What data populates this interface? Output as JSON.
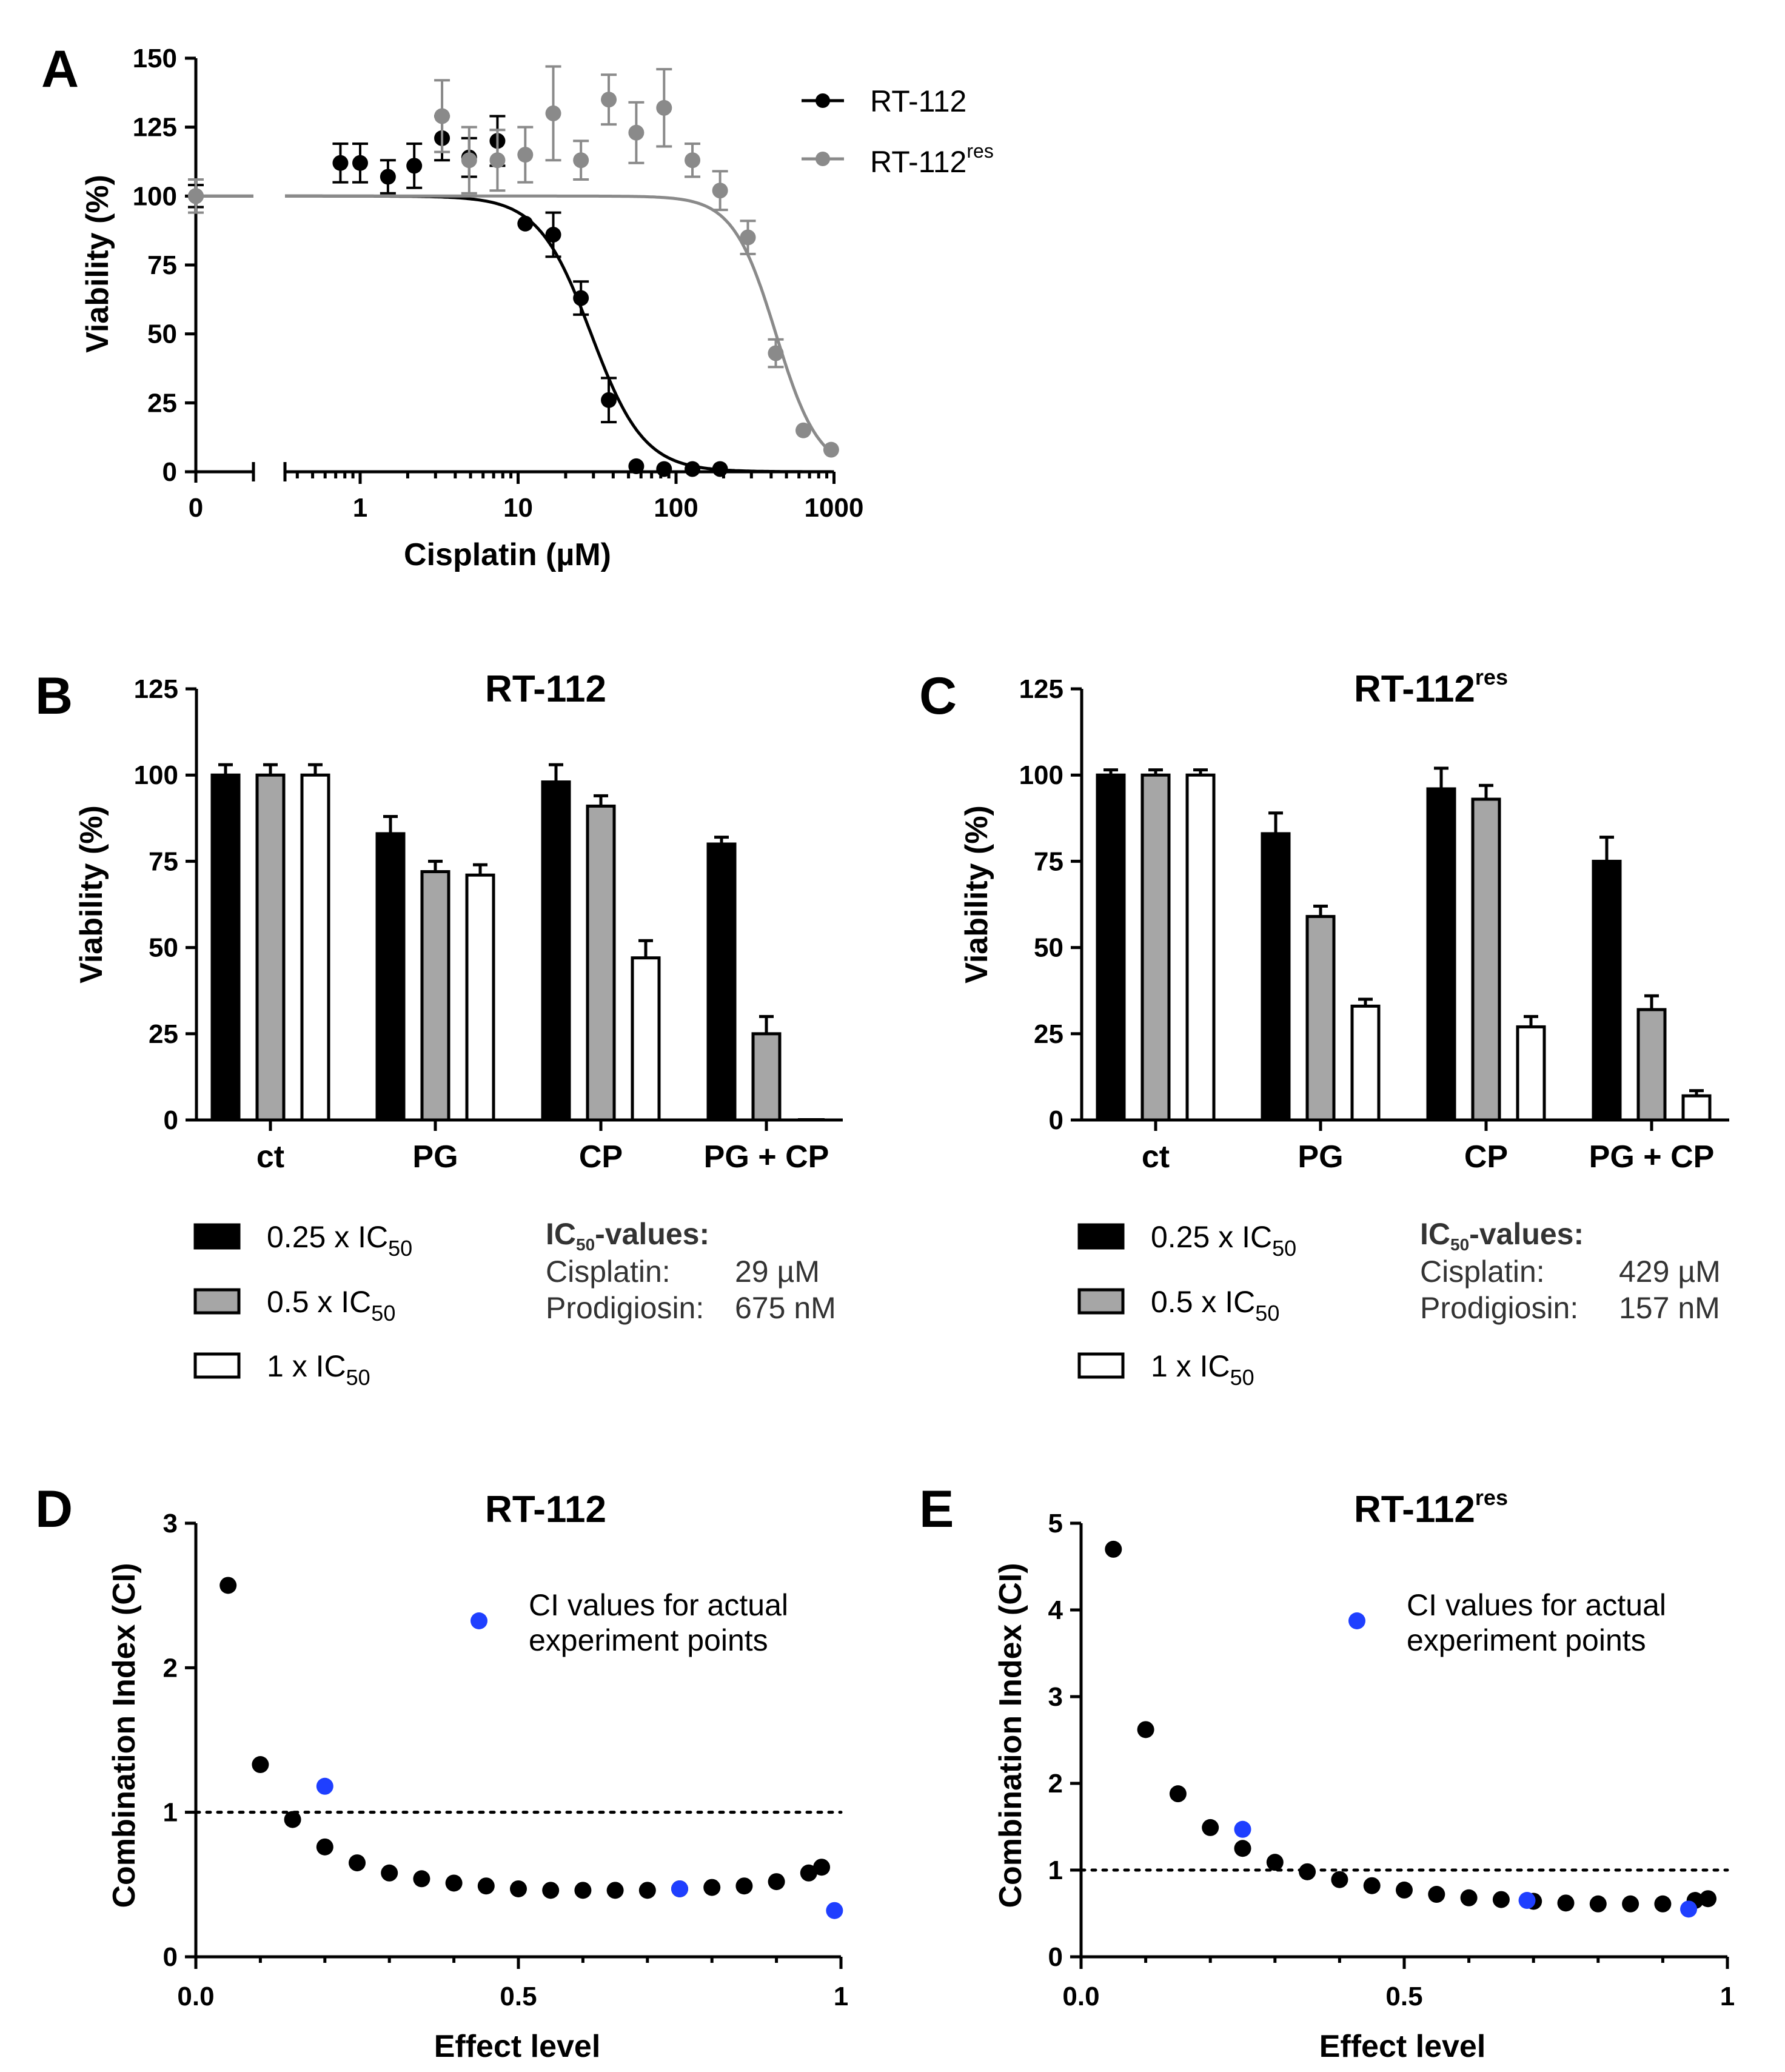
{
  "colors": {
    "black_series": "#000000",
    "grey_series": "#8a8a8a",
    "bar_black": "#000000",
    "bar_grey": "#a6a6a6",
    "bar_white": "#ffffff",
    "ci_black": "#000000",
    "ci_blue": "#1f3fff"
  },
  "panels": {
    "A": {
      "letter": "A",
      "ylabel": "Viability (%)",
      "xlabel": "Cisplatin (µM)",
      "yticks": [
        "0",
        "25",
        "50",
        "75",
        "100",
        "125",
        "150"
      ],
      "xticks_zero": "0",
      "xticks_log": [
        "1",
        "10",
        "100",
        "1000"
      ],
      "legend": [
        {
          "name": "RT-112",
          "sup": ""
        },
        {
          "name": "RT-112",
          "sup": "res"
        }
      ]
    },
    "B": {
      "letter": "B",
      "title": "RT-112",
      "title_sup": "",
      "ylabel": "Viability (%)",
      "yticks": [
        "0",
        "25",
        "50",
        "75",
        "100",
        "125"
      ],
      "groups": [
        "ct",
        "PG",
        "CP",
        "PG + CP"
      ],
      "legend": [
        "0.25 x IC",
        "0.5 x IC",
        "1 x IC"
      ],
      "legend_sub": "50",
      "ic_title": "IC",
      "ic_title_sub": "50",
      "ic_title_rest": "-values:",
      "ic_rows": [
        {
          "label": "Cisplatin:",
          "value": "29 µM"
        },
        {
          "label": "Prodigiosin:",
          "value": "675 nM"
        }
      ]
    },
    "C": {
      "letter": "C",
      "title": "RT-112",
      "title_sup": "res",
      "ylabel": "Viability (%)",
      "yticks": [
        "0",
        "25",
        "50",
        "75",
        "100",
        "125"
      ],
      "groups": [
        "ct",
        "PG",
        "CP",
        "PG + CP"
      ],
      "legend": [
        "0.25 x IC",
        "0.5 x IC",
        "1 x IC"
      ],
      "legend_sub": "50",
      "ic_title": "IC",
      "ic_title_sub": "50",
      "ic_title_rest": "-values:",
      "ic_rows": [
        {
          "label": "Cisplatin:",
          "value": "429 µM"
        },
        {
          "label": "Prodigiosin:",
          "value": "157 nM"
        }
      ]
    },
    "D": {
      "letter": "D",
      "title": "RT-112",
      "title_sup": "",
      "ylabel": "Combination Index (CI)",
      "xlabel": "Effect level",
      "yticks": [
        "0",
        "1",
        "2",
        "3"
      ],
      "xticks": [
        "0.0",
        "0.5",
        "1"
      ],
      "legend": [
        "CI values for actual",
        "experiment points"
      ]
    },
    "E": {
      "letter": "E",
      "title": "RT-112",
      "title_sup": "res",
      "ylabel": "Combination Index (CI)",
      "xlabel": "Effect level",
      "yticks": [
        "0",
        "1",
        "2",
        "3",
        "4",
        "5"
      ],
      "xticks": [
        "0.0",
        "0.5",
        "1"
      ],
      "legend": [
        "CI values for actual",
        "experiment points"
      ]
    }
  },
  "chart_data": [
    {
      "panel": "A",
      "type": "scatter",
      "xlabel": "Cisplatin (µM)",
      "ylabel": "Viability (%)",
      "xscale": "log (with separate 0 segment)",
      "xlim": [
        0.3,
        1000
      ],
      "ylim": [
        0,
        150
      ],
      "legend_position": "top-right",
      "series": [
        {
          "name": "RT-112",
          "color": "#000000",
          "fit": {
            "top": 100,
            "bottom": 0,
            "ic50": 29,
            "hill": 2.6
          },
          "points": [
            {
              "x": 0,
              "y": 100,
              "err": 4
            },
            {
              "x": 0.75,
              "y": 112,
              "err": 7
            },
            {
              "x": 1.0,
              "y": 112,
              "err": 7
            },
            {
              "x": 1.5,
              "y": 107,
              "err": 6
            },
            {
              "x": 2.2,
              "y": 111,
              "err": 8
            },
            {
              "x": 3.3,
              "y": 121,
              "err": 8
            },
            {
              "x": 4.9,
              "y": 114,
              "err": 7
            },
            {
              "x": 7.4,
              "y": 120,
              "err": 9
            },
            {
              "x": 11.1,
              "y": 90,
              "err": 0
            },
            {
              "x": 16.7,
              "y": 86,
              "err": 8
            },
            {
              "x": 25,
              "y": 63,
              "err": 6
            },
            {
              "x": 37.5,
              "y": 26,
              "err": 8
            },
            {
              "x": 56,
              "y": 2,
              "err": 0
            },
            {
              "x": 84,
              "y": 1,
              "err": 0
            },
            {
              "x": 127,
              "y": 1,
              "err": 0
            },
            {
              "x": 190,
              "y": 1,
              "err": 0
            }
          ]
        },
        {
          "name": "RT-112res",
          "color": "#8a8a8a",
          "fit": {
            "top": 100,
            "bottom": 0,
            "ic50": 429,
            "hill": 3.2
          },
          "points": [
            {
              "x": 0,
              "y": 100,
              "err": 6
            },
            {
              "x": 3.3,
              "y": 129,
              "err": 13
            },
            {
              "x": 4.9,
              "y": 113,
              "err": 12
            },
            {
              "x": 7.4,
              "y": 113,
              "err": 11
            },
            {
              "x": 11.1,
              "y": 115,
              "err": 10
            },
            {
              "x": 16.7,
              "y": 130,
              "err": 17
            },
            {
              "x": 25,
              "y": 113,
              "err": 7
            },
            {
              "x": 37.5,
              "y": 135,
              "err": 9
            },
            {
              "x": 56,
              "y": 123,
              "err": 11
            },
            {
              "x": 84,
              "y": 132,
              "err": 14
            },
            {
              "x": 127,
              "y": 113,
              "err": 6
            },
            {
              "x": 190,
              "y": 102,
              "err": 7
            },
            {
              "x": 285,
              "y": 85,
              "err": 6
            },
            {
              "x": 428,
              "y": 43,
              "err": 5
            },
            {
              "x": 640,
              "y": 15,
              "err": 0
            },
            {
              "x": 960,
              "y": 8,
              "err": 0
            }
          ]
        }
      ]
    },
    {
      "panel": "B",
      "type": "bar",
      "title": "RT-112",
      "ylabel": "Viability (%)",
      "ylim": [
        0,
        125
      ],
      "categories": [
        "ct",
        "PG",
        "CP",
        "PG + CP"
      ],
      "series": [
        {
          "name": "0.25 x IC50",
          "values": [
            100,
            83,
            98,
            80
          ],
          "errors": [
            3,
            5,
            5,
            2
          ]
        },
        {
          "name": "0.5 x IC50",
          "values": [
            100,
            72,
            91,
            25
          ],
          "errors": [
            3,
            3,
            3,
            5
          ]
        },
        {
          "name": "1 x IC50",
          "values": [
            100,
            71,
            47,
            0
          ],
          "errors": [
            3,
            3,
            5,
            0
          ]
        }
      ]
    },
    {
      "panel": "C",
      "type": "bar",
      "title": "RT-112res",
      "ylabel": "Viability (%)",
      "ylim": [
        0,
        125
      ],
      "categories": [
        "ct",
        "PG",
        "CP",
        "PG + CP"
      ],
      "series": [
        {
          "name": "0.25 x IC50",
          "values": [
            100,
            83,
            96,
            75
          ],
          "errors": [
            1.5,
            6,
            6,
            7
          ]
        },
        {
          "name": "0.5 x IC50",
          "values": [
            100,
            59,
            93,
            32
          ],
          "errors": [
            1.5,
            3,
            4,
            4
          ]
        },
        {
          "name": "1 x IC50",
          "values": [
            100,
            33,
            27,
            7
          ],
          "errors": [
            1.5,
            2,
            3,
            1.5
          ]
        }
      ]
    },
    {
      "panel": "D",
      "type": "scatter",
      "title": "RT-112",
      "xlabel": "Effect level",
      "ylabel": "Combination Index (CI)",
      "xlim": [
        0,
        1
      ],
      "ylim": [
        0,
        3
      ],
      "reference_line_y": 1,
      "series": [
        {
          "name": "",
          "color": "#000000",
          "x": [
            0.05,
            0.1,
            0.15,
            0.2,
            0.25,
            0.3,
            0.35,
            0.4,
            0.45,
            0.5,
            0.55,
            0.6,
            0.65,
            0.7,
            0.75,
            0.8,
            0.85,
            0.9,
            0.95,
            0.97
          ],
          "y": [
            2.57,
            1.33,
            0.95,
            0.76,
            0.65,
            0.58,
            0.54,
            0.51,
            0.49,
            0.47,
            0.46,
            0.46,
            0.46,
            0.46,
            0.47,
            0.48,
            0.49,
            0.52,
            0.58,
            0.62
          ]
        },
        {
          "name": "CI values for actual experiment points",
          "color": "#1f3fff",
          "x": [
            0.2,
            0.75,
            0.99
          ],
          "y": [
            1.18,
            0.47,
            0.32
          ]
        }
      ]
    },
    {
      "panel": "E",
      "type": "scatter",
      "title": "RT-112res",
      "xlabel": "Effect level",
      "ylabel": "Combination Index (CI)",
      "xlim": [
        0,
        1
      ],
      "ylim": [
        0,
        5
      ],
      "reference_line_y": 1,
      "series": [
        {
          "name": "",
          "color": "#000000",
          "x": [
            0.05,
            0.1,
            0.15,
            0.2,
            0.25,
            0.3,
            0.35,
            0.4,
            0.45,
            0.5,
            0.55,
            0.6,
            0.65,
            0.7,
            0.75,
            0.8,
            0.85,
            0.9,
            0.95,
            0.97
          ],
          "y": [
            4.7,
            2.62,
            1.88,
            1.49,
            1.25,
            1.09,
            0.98,
            0.89,
            0.82,
            0.77,
            0.72,
            0.68,
            0.66,
            0.64,
            0.62,
            0.61,
            0.61,
            0.61,
            0.65,
            0.67
          ]
        },
        {
          "name": "CI values for actual experiment points",
          "color": "#1f3fff",
          "x": [
            0.25,
            0.69,
            0.94
          ],
          "y": [
            1.47,
            0.65,
            0.55
          ]
        }
      ]
    }
  ]
}
